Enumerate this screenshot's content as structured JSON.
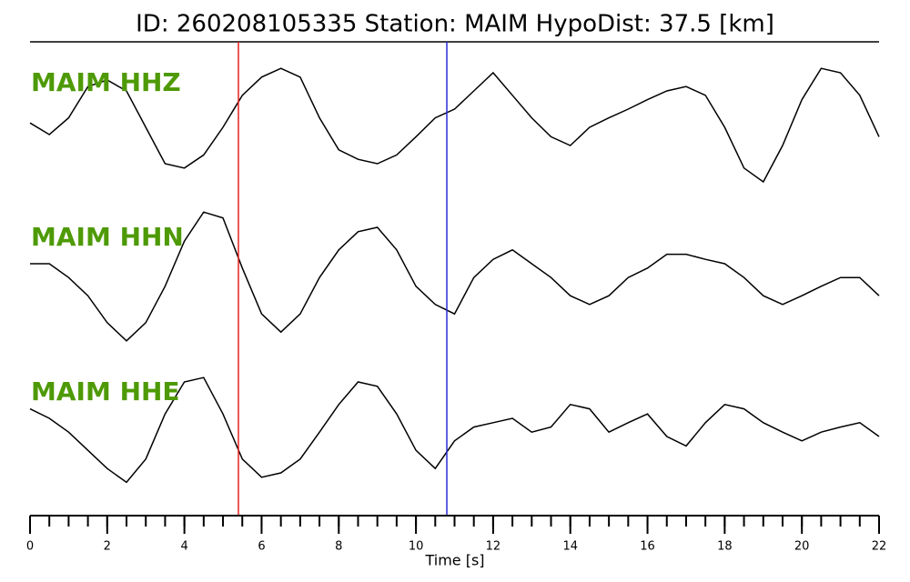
{
  "chart_data": {
    "type": "line",
    "title": "ID: 260208105335   Station: MAIM   HypoDist:    37.5 [km]",
    "xlabel": "Time [s]",
    "xlim": [
      0,
      22
    ],
    "xticks": [
      0,
      2,
      4,
      6,
      8,
      10,
      12,
      14,
      16,
      18,
      20,
      22
    ],
    "xminorticks": [
      0,
      0.5,
      1,
      1.5,
      2,
      2.5,
      3,
      3.5,
      4,
      4.5,
      5,
      5.5,
      6,
      6.5,
      7,
      7.5,
      8,
      8.5,
      9,
      9.5,
      10,
      10.5,
      11,
      11.5,
      12,
      12.5,
      13,
      13.5,
      14,
      14.5,
      15,
      15.5,
      16,
      16.5,
      17,
      17.5,
      18,
      18.5,
      19,
      19.5,
      20,
      20.5,
      21,
      21.5,
      22
    ],
    "ylim": [
      -1,
      1
    ],
    "label_color": "#4e9a06",
    "picks": [
      {
        "value": 5.4,
        "color": "#e8211f"
      },
      {
        "value": 10.8,
        "color": "#2b2bd6"
      }
    ],
    "x": [
      0,
      0.5,
      1,
      1.5,
      2,
      2.5,
      3,
      3.5,
      4,
      4.5,
      5,
      5.5,
      6,
      6.5,
      7,
      7.5,
      8,
      8.5,
      9,
      9.5,
      10,
      10.5,
      11,
      11.5,
      12,
      12.5,
      13,
      13.5,
      14,
      14.5,
      15,
      15.5,
      16,
      16.5,
      17,
      17.5,
      18,
      18.5,
      19,
      19.5,
      20,
      20.5,
      21,
      21.5,
      22
    ],
    "series": [
      {
        "name": "MAIM HHZ",
        "color": "#000000",
        "values": [
          0.06,
          -0.1,
          0.13,
          0.56,
          0.65,
          0.5,
          0,
          -0.5,
          -0.56,
          -0.38,
          0,
          0.44,
          0.69,
          0.81,
          0.69,
          0.13,
          -0.31,
          -0.44,
          -0.5,
          -0.38,
          -0.13,
          0.13,
          0.25,
          0.5,
          0.75,
          0.44,
          0.13,
          -0.13,
          -0.25,
          0,
          0.13,
          0.25,
          0.38,
          0.5,
          0.56,
          0.44,
          0,
          -0.56,
          -0.75,
          -0.25,
          0.38,
          0.81,
          0.75,
          0.44,
          -0.13
        ]
      },
      {
        "name": "MAIM HHN",
        "color": "#000000",
        "values": [
          0.25,
          0.25,
          0.06,
          -0.19,
          -0.56,
          -0.81,
          -0.56,
          -0.06,
          0.56,
          0.96,
          0.88,
          0.19,
          -0.44,
          -0.69,
          -0.44,
          0.06,
          0.44,
          0.69,
          0.75,
          0.44,
          -0.06,
          -0.31,
          -0.44,
          0.06,
          0.31,
          0.44,
          0.25,
          0.06,
          -0.19,
          -0.31,
          -0.19,
          0.06,
          0.19,
          0.38,
          0.38,
          0.31,
          0.25,
          0.06,
          -0.19,
          -0.31,
          -0.19,
          -0.06,
          0.06,
          0.06,
          -0.19
        ]
      },
      {
        "name": "MAIM HHE",
        "color": "#000000",
        "values": [
          0.38,
          0.25,
          0.06,
          -0.19,
          -0.44,
          -0.63,
          -0.31,
          0.31,
          0.75,
          0.81,
          0.31,
          -0.31,
          -0.56,
          -0.5,
          -0.31,
          0.06,
          0.44,
          0.75,
          0.69,
          0.31,
          -0.19,
          -0.44,
          -0.06,
          0.13,
          0.19,
          0.25,
          0.06,
          0.13,
          0.44,
          0.38,
          0.06,
          0.19,
          0.31,
          0,
          -0.13,
          0.19,
          0.44,
          0.38,
          0.19,
          0.06,
          -0.06,
          0.06,
          0.13,
          0.19,
          0
        ]
      }
    ]
  }
}
